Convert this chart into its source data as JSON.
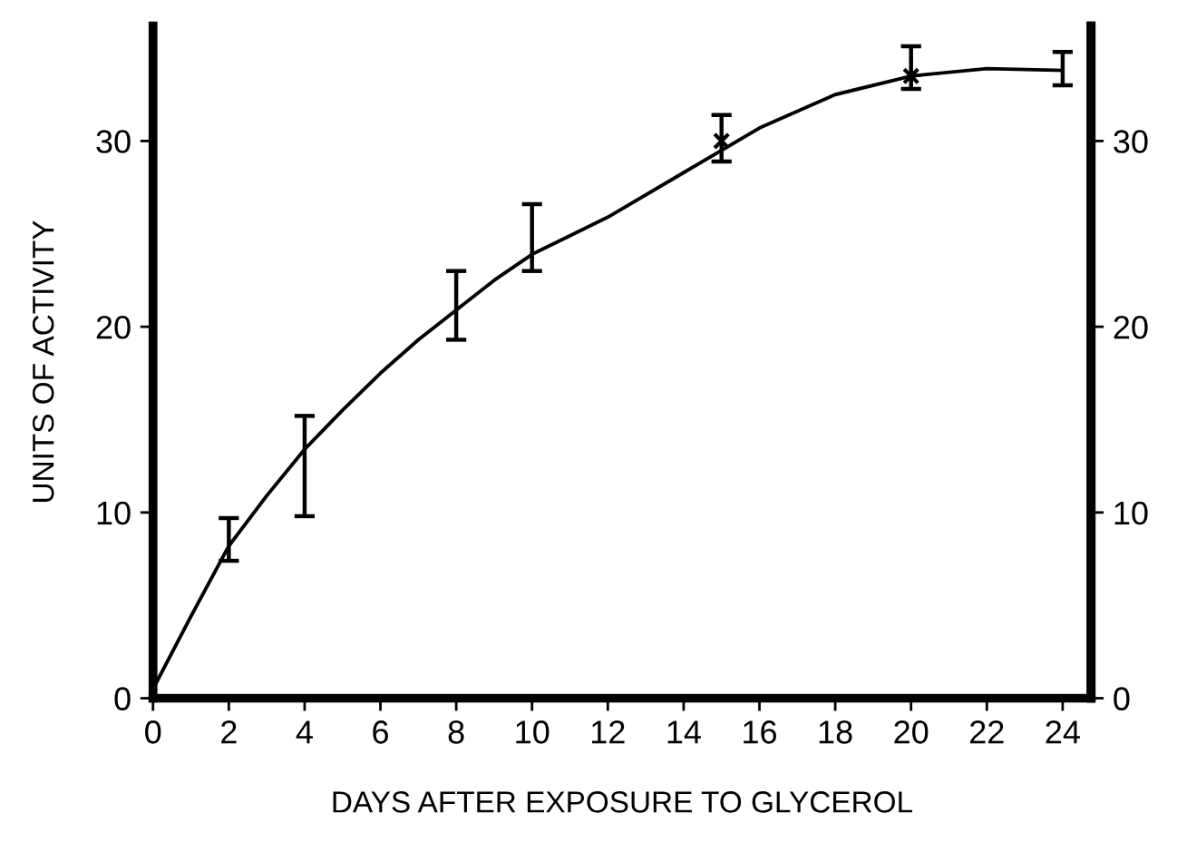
{
  "chart_data": {
    "type": "line",
    "xlabel": "DAYS AFTER EXPOSURE TO GLYCEROL",
    "ylabel": "UNITS OF ACTIVITY",
    "xlim": [
      0,
      24.75
    ],
    "xticks": [
      0,
      2,
      4,
      6,
      8,
      10,
      12,
      14,
      16,
      18,
      20,
      22,
      24
    ],
    "ylim": [
      0,
      36.2
    ],
    "yticks": [
      0,
      10,
      20,
      30
    ],
    "y2lim": [
      0,
      36.2
    ],
    "y2ticks": [
      0,
      10,
      20,
      30
    ],
    "grid": false,
    "legend": false,
    "series": [
      {
        "color": "#000000",
        "marker": "none",
        "line_style": "solid",
        "x": [
          0,
          1,
          2,
          3,
          4,
          5,
          6,
          7,
          8,
          9,
          10,
          12,
          14,
          16,
          18,
          20,
          22,
          24
        ],
        "values": [
          0.5,
          4.4,
          8.2,
          10.9,
          13.4,
          15.5,
          17.5,
          19.3,
          20.9,
          22.5,
          23.9,
          25.9,
          28.3,
          30.7,
          32.5,
          33.5,
          33.9,
          33.8
        ],
        "errors": [
          null,
          null,
          [
            7.4,
            9.7
          ],
          null,
          [
            9.8,
            15.2
          ],
          null,
          null,
          null,
          [
            19.3,
            23.0
          ],
          null,
          [
            23.0,
            26.6
          ],
          null,
          null,
          null,
          null,
          null,
          null,
          [
            33.0,
            34.8
          ]
        ]
      },
      {
        "type": "scatter",
        "color": "#000000",
        "marker": "cross",
        "x": [
          15,
          20
        ],
        "values": [
          30.0,
          33.5
        ],
        "errors": [
          [
            28.9,
            31.4
          ],
          [
            32.8,
            35.1
          ]
        ]
      }
    ]
  }
}
